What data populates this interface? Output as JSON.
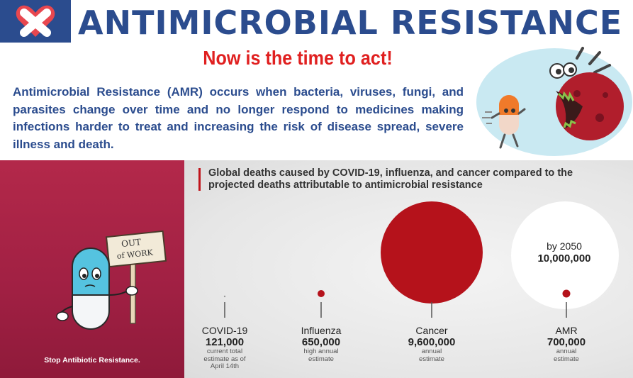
{
  "header": {
    "title": "ANTIMICROBIAL RESISTANCE",
    "logo_icon": "heart-x-logo-icon",
    "subtitle": "Now is the time to act!"
  },
  "intro": {
    "text": "Antimicrobial Resistance (AMR) occurs when bacteria, viruses, fungi, and parasites change over time and no longer respond to medicines making infections harder to treat and increasing the risk of disease spread, severe illness and death."
  },
  "poster": {
    "sign_line1": "OUT",
    "sign_line2": "of WORK",
    "caption": "Stop Antibiotic Resistance."
  },
  "infographic": {
    "title": "Global deaths caused by COVID-19, influenza, and cancer compared to the projected deaths attributable to antimicrobial resistance",
    "amr_projection_year": "by 2050",
    "amr_projection_value": "10,000,000",
    "items": [
      {
        "name": "COVID-19",
        "value": "121,000",
        "note1": "current total",
        "note2": "estimate as of",
        "note3": "April 14th"
      },
      {
        "name": "Influenza",
        "value": "650,000",
        "note1": "high annual",
        "note2": "estimate",
        "note3": ""
      },
      {
        "name": "Cancer",
        "value": "9,600,000",
        "note1": "annual",
        "note2": "estimate",
        "note3": ""
      },
      {
        "name": "AMR",
        "value": "700,000",
        "note1": "annual",
        "note2": "estimate",
        "note3": ""
      }
    ],
    "colors": {
      "accent_red": "#b5121b",
      "title_blue": "#2b4c8e",
      "headline_red": "#e02020"
    }
  }
}
